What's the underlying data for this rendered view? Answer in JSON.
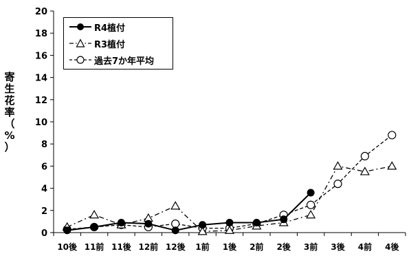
{
  "chart_data": {
    "type": "line",
    "title": "",
    "xlabel": "",
    "ylabel": "寄生花率（%）",
    "ylim": [
      0,
      20
    ],
    "yticks": [
      0,
      2,
      4,
      6,
      8,
      10,
      12,
      14,
      16,
      18,
      20
    ],
    "grid": false,
    "legend_position": "top-left",
    "categories": [
      "10後",
      "11前",
      "11後",
      "12前",
      "12後",
      "1前",
      "1後",
      "2前",
      "2後",
      "3前",
      "3後",
      "4前",
      "4後"
    ],
    "series": [
      {
        "name": "R4植付",
        "marker": "filled-circle",
        "line": "solid",
        "color": "#000000",
        "values": [
          0.2,
          0.5,
          0.9,
          0.8,
          0.2,
          0.7,
          0.9,
          0.9,
          1.2,
          3.6,
          null,
          null,
          null
        ]
      },
      {
        "name": "R3植付",
        "marker": "triangle",
        "line": "dash-dot",
        "color": "#000000",
        "values": [
          0.5,
          1.6,
          0.7,
          1.3,
          2.4,
          0.1,
          0.2,
          0.6,
          0.9,
          1.6,
          6.0,
          5.5,
          6.0
        ]
      },
      {
        "name": "過去7か年平均",
        "marker": "open-circle",
        "line": "dashed",
        "color": "#000000",
        "values": [
          0.3,
          0.5,
          0.7,
          0.5,
          0.8,
          0.4,
          0.4,
          0.8,
          1.6,
          2.5,
          4.4,
          6.9,
          8.8
        ]
      }
    ]
  }
}
